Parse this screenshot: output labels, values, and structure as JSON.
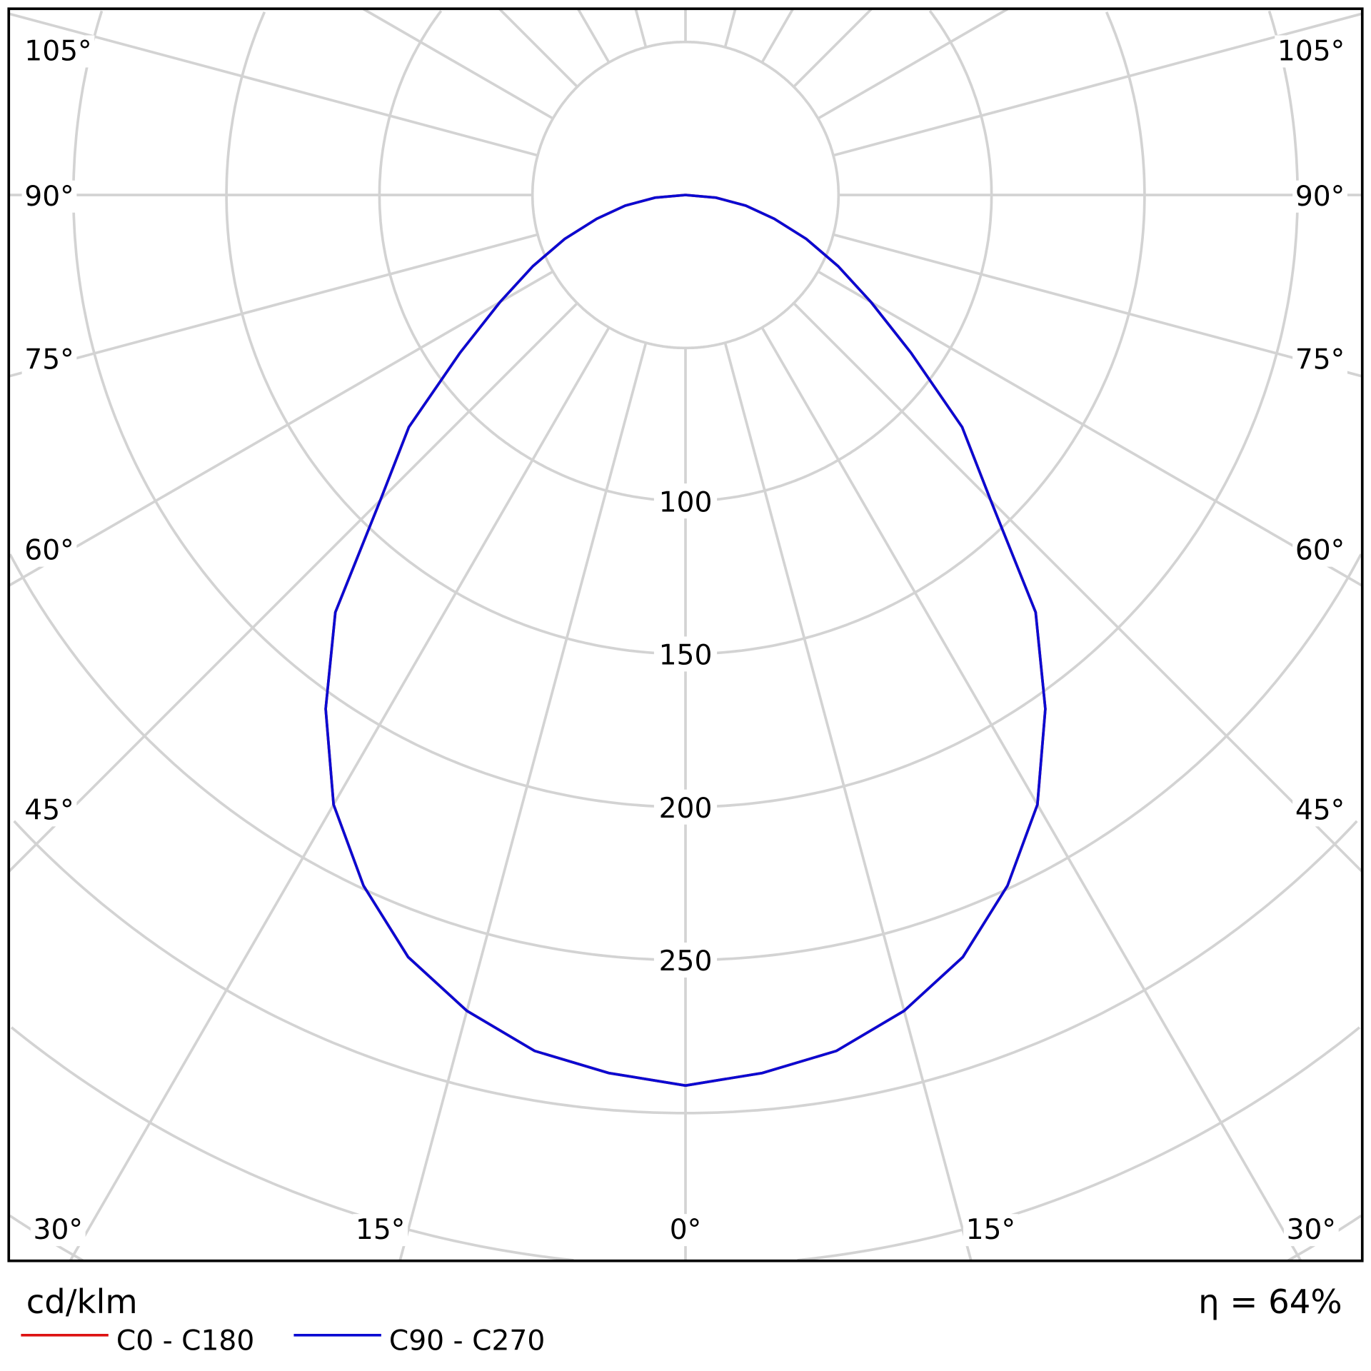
{
  "chart_data": {
    "type": "polar",
    "unit_label": "cd/klm",
    "efficiency_label": "η = 64%",
    "radial_ticks": [
      100,
      150,
      200,
      250
    ],
    "radial_circles": [
      50,
      100,
      150,
      200,
      250,
      300,
      350,
      400
    ],
    "angle_step_deg": 15,
    "angle_labels_left": [
      "105°",
      "90°",
      "75°",
      "60°",
      "45°",
      "30°"
    ],
    "angle_labels_right": [
      "105°",
      "90°",
      "75°",
      "60°",
      "45°",
      "30°"
    ],
    "angle_labels_bottom": [
      "15°",
      "0°",
      "15°"
    ],
    "grid": true,
    "legend_placement": "bottom-left",
    "angles_deg": [
      0,
      5,
      10,
      15,
      20,
      25,
      30,
      35,
      40,
      45,
      50,
      55,
      60,
      65,
      70,
      75,
      80,
      85,
      90
    ],
    "series": [
      {
        "name": "C0 - C180",
        "color": "#dd1111",
        "values": [
          291,
          288,
          284,
          276,
          265,
          249,
          230,
          205,
          178,
          141,
          118,
          90,
          70,
          55,
          42,
          30,
          20,
          10,
          0
        ]
      },
      {
        "name": "C90 - C270",
        "color": "#0a0ad2",
        "values": [
          291,
          288,
          284,
          276,
          265,
          249,
          230,
          205,
          178,
          141,
          118,
          90,
          70,
          55,
          42,
          30,
          20,
          10,
          0
        ]
      }
    ]
  }
}
